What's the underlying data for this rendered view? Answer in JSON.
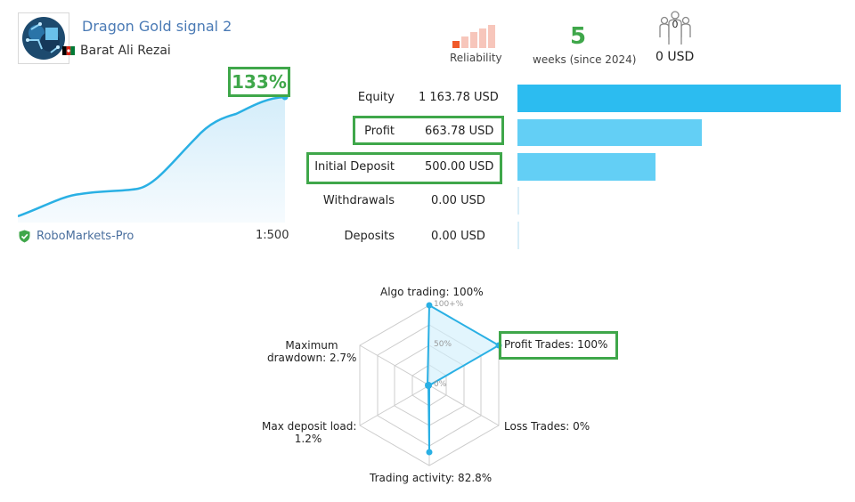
{
  "header": {
    "title": "Dragon Gold signal 2",
    "author": "Barat Ali Rezai",
    "reliability_label": "Reliability",
    "weeks_value": "5",
    "weeks_label": "weeks (since 2024)",
    "subscribers_count": "0",
    "subscribers_usd": "0 USD"
  },
  "growth": {
    "percent_label": "133%",
    "broker": "RoboMarkets-Pro",
    "leverage": "1:500"
  },
  "stats": {
    "equity": {
      "label": "Equity",
      "value": "1 163.78 USD",
      "bar_fraction": 1.0
    },
    "profit": {
      "label": "Profit",
      "value": "663.78 USD",
      "bar_fraction": 0.57
    },
    "initial_deposit": {
      "label": "Initial Deposit",
      "value": "500.00 USD",
      "bar_fraction": 0.43
    },
    "withdrawals": {
      "label": "Withdrawals",
      "value": "0.00 USD",
      "bar_fraction": 0
    },
    "deposits": {
      "label": "Deposits",
      "value": "0.00 USD",
      "bar_fraction": 0
    }
  },
  "radar": {
    "algo_trading": "Algo trading: 100%",
    "profit_trades": "Profit Trades: 100%",
    "loss_trades": "Loss Trades: 0%",
    "trading_activity": "Trading activity: 82.8%",
    "max_deposit_load_line1": "Max deposit load:",
    "max_deposit_load_line2": "1.2%",
    "max_drawdown_line1": "Maximum",
    "max_drawdown_line2": "drawdown: 2.7%",
    "scale_100": "100+%",
    "scale_50": "50%",
    "scale_0": "0%",
    "values": [
      100,
      100,
      0,
      82.8,
      1.2,
      2.7
    ]
  },
  "colors": {
    "accent_green": "#3fa74a",
    "bar_blue": "#2cbcf0",
    "bar_light": "#63cff5",
    "line_blue": "#2ab0e4",
    "title_blue": "#4a7ab5"
  }
}
